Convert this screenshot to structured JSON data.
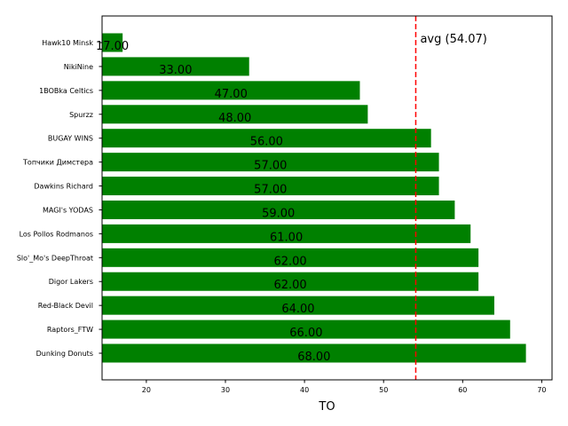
{
  "chart_data": {
    "type": "bar",
    "orientation": "horizontal",
    "categories": [
      "Hawk10 Minsk",
      "NikiNine",
      "1BOBka Celtics",
      "Spurzz",
      "BUGAY WINS",
      "Топчики Димстера",
      "Dawkins Richard",
      "MAGI's YODAS",
      "Los Pollos Rodmanos",
      "Slo'_Mo's DeepThroat",
      "Digor Lakers",
      "Red-Black Devil",
      "Raptors_FTW",
      "Dunking Donuts"
    ],
    "values": [
      17,
      33,
      47,
      48,
      56,
      57,
      57,
      59,
      61,
      62,
      62,
      64,
      66,
      68
    ],
    "value_labels": [
      "17.00",
      "33.00",
      "47.00",
      "48.00",
      "56.00",
      "57.00",
      "57.00",
      "59.00",
      "61.00",
      "62.00",
      "62.00",
      "64.00",
      "66.00",
      "68.00"
    ],
    "title": "",
    "xlabel": "TO",
    "ylabel": "",
    "xlim": [
      14.4,
      71.3
    ],
    "xticks": [
      20,
      30,
      40,
      50,
      60,
      70
    ],
    "xtick_labels": [
      "20",
      "30",
      "40",
      "50",
      "60",
      "70"
    ],
    "bar_color": "#008000",
    "reference_line": {
      "value": 54.07,
      "label": "avg (54.07)",
      "color": "#ff0000",
      "style": "dashed"
    },
    "grid": false
  }
}
